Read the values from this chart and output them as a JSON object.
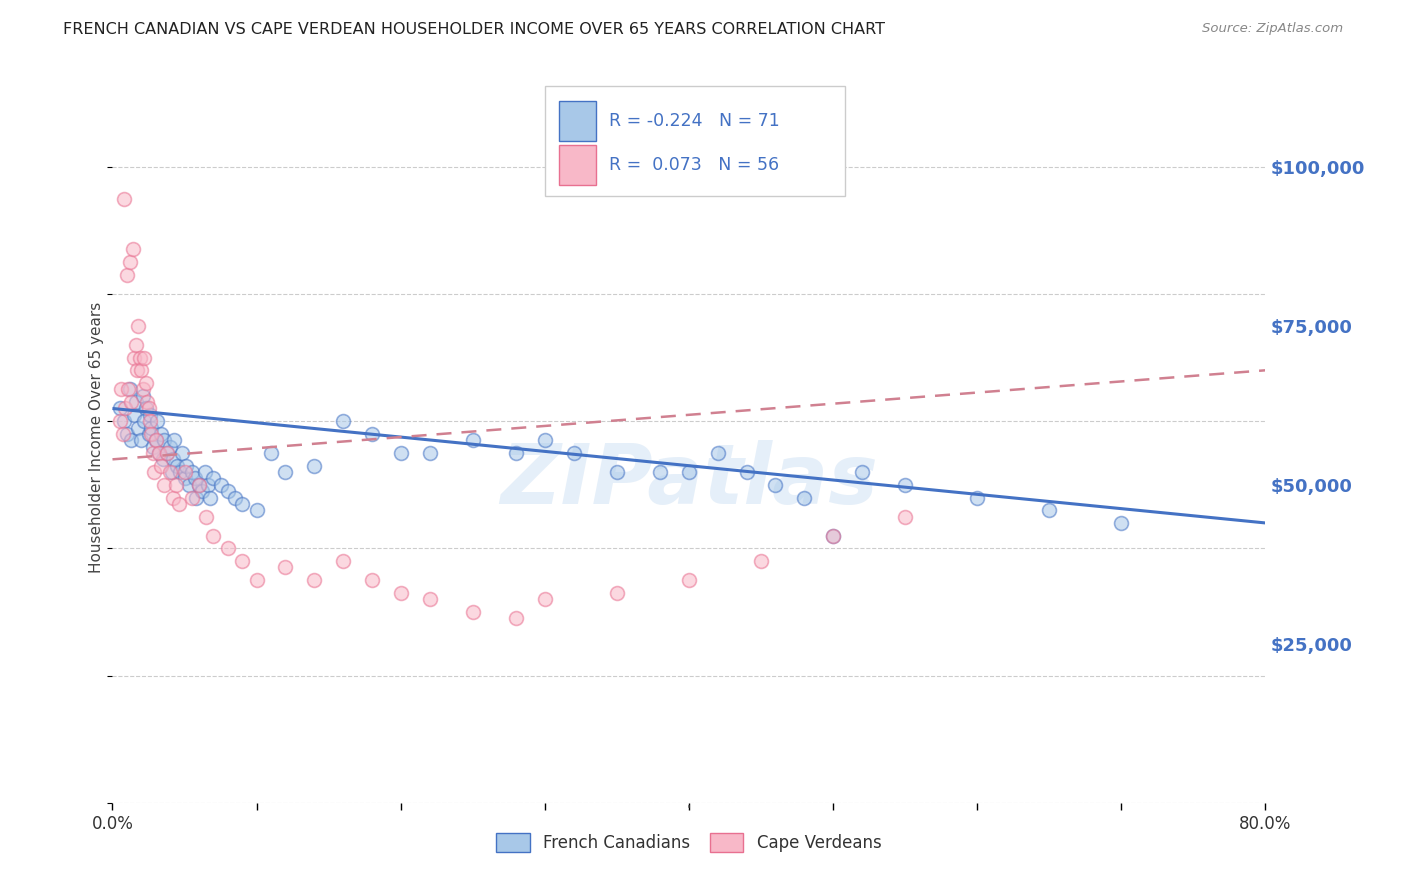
{
  "title": "FRENCH CANADIAN VS CAPE VERDEAN HOUSEHOLDER INCOME OVER 65 YEARS CORRELATION CHART",
  "source": "Source: ZipAtlas.com",
  "ylabel": "Householder Income Over 65 years",
  "y_tick_labels": [
    "$25,000",
    "$50,000",
    "$75,000",
    "$100,000"
  ],
  "y_tick_values": [
    25000,
    50000,
    75000,
    100000
  ],
  "xlim": [
    0.0,
    0.8
  ],
  "ylim": [
    0,
    115000
  ],
  "legend_entries": [
    {
      "label": "French Canadians",
      "color": "#b8d4ea",
      "edge": "#4472c4",
      "R": "-0.224",
      "N": "71"
    },
    {
      "label": "Cape Verdeans",
      "color": "#f9bfcc",
      "edge": "#e87090",
      "R": "0.073",
      "N": "56"
    }
  ],
  "blue_scatter_x": [
    0.005,
    0.008,
    0.01,
    0.012,
    0.013,
    0.015,
    0.016,
    0.018,
    0.02,
    0.021,
    0.022,
    0.023,
    0.025,
    0.026,
    0.027,
    0.028,
    0.03,
    0.031,
    0.032,
    0.034,
    0.035,
    0.036,
    0.038,
    0.04,
    0.041,
    0.042,
    0.043,
    0.045,
    0.047,
    0.048,
    0.05,
    0.051,
    0.053,
    0.055,
    0.057,
    0.058,
    0.06,
    0.062,
    0.064,
    0.066,
    0.068,
    0.07,
    0.075,
    0.08,
    0.085,
    0.09,
    0.1,
    0.11,
    0.12,
    0.14,
    0.16,
    0.18,
    0.2,
    0.22,
    0.25,
    0.28,
    0.3,
    0.32,
    0.35,
    0.38,
    0.4,
    0.42,
    0.44,
    0.46,
    0.48,
    0.5,
    0.52,
    0.55,
    0.6,
    0.65,
    0.7
  ],
  "blue_scatter_y": [
    62000,
    60000,
    58000,
    65000,
    57000,
    61000,
    63000,
    59000,
    57000,
    64000,
    60000,
    62000,
    58000,
    61000,
    59000,
    56000,
    57000,
    60000,
    55000,
    58000,
    54000,
    57000,
    55000,
    56000,
    52000,
    54000,
    57000,
    53000,
    52000,
    55000,
    51000,
    53000,
    50000,
    52000,
    51000,
    48000,
    50000,
    49000,
    52000,
    50000,
    48000,
    51000,
    50000,
    49000,
    48000,
    47000,
    46000,
    55000,
    52000,
    53000,
    60000,
    58000,
    55000,
    55000,
    57000,
    55000,
    57000,
    55000,
    52000,
    52000,
    52000,
    55000,
    52000,
    50000,
    48000,
    42000,
    52000,
    50000,
    48000,
    46000,
    44000
  ],
  "pink_scatter_x": [
    0.005,
    0.006,
    0.007,
    0.008,
    0.009,
    0.01,
    0.011,
    0.012,
    0.013,
    0.014,
    0.015,
    0.016,
    0.017,
    0.018,
    0.019,
    0.02,
    0.021,
    0.022,
    0.023,
    0.024,
    0.025,
    0.026,
    0.027,
    0.028,
    0.029,
    0.03,
    0.032,
    0.034,
    0.036,
    0.038,
    0.04,
    0.042,
    0.044,
    0.046,
    0.05,
    0.055,
    0.06,
    0.065,
    0.07,
    0.08,
    0.09,
    0.1,
    0.12,
    0.14,
    0.16,
    0.18,
    0.2,
    0.22,
    0.25,
    0.28,
    0.3,
    0.35,
    0.4,
    0.45,
    0.5,
    0.55
  ],
  "pink_scatter_y": [
    60000,
    65000,
    58000,
    95000,
    62000,
    83000,
    65000,
    85000,
    63000,
    87000,
    70000,
    72000,
    68000,
    75000,
    70000,
    68000,
    65000,
    70000,
    66000,
    63000,
    62000,
    60000,
    58000,
    55000,
    52000,
    57000,
    55000,
    53000,
    50000,
    55000,
    52000,
    48000,
    50000,
    47000,
    52000,
    48000,
    50000,
    45000,
    42000,
    40000,
    38000,
    35000,
    37000,
    35000,
    38000,
    35000,
    33000,
    32000,
    30000,
    29000,
    32000,
    33000,
    35000,
    38000,
    42000,
    45000
  ],
  "blue_line_x": [
    0.0,
    0.8
  ],
  "blue_line_y": [
    62000,
    44000
  ],
  "pink_line_x": [
    0.0,
    0.8
  ],
  "pink_line_y": [
    54000,
    68000
  ],
  "scatter_size": 100,
  "scatter_alpha": 0.55,
  "scatter_lw": 1.2,
  "bg_color": "#ffffff",
  "grid_color": "#cccccc",
  "watermark_text": "ZIPatlas",
  "watermark_color": "#c0d8f0",
  "watermark_alpha": 0.4,
  "title_color": "#222222",
  "axis_label_color": "#444444",
  "right_tick_color": "#4472c4",
  "legend_text_color": "#4472c4",
  "line_blue_color": "#4472c4",
  "line_pink_color": "#d08090",
  "dot_blue_color": "#a8c8e8",
  "dot_blue_edge": "#4472c4",
  "dot_pink_color": "#f8b8c8",
  "dot_pink_edge": "#e87090"
}
